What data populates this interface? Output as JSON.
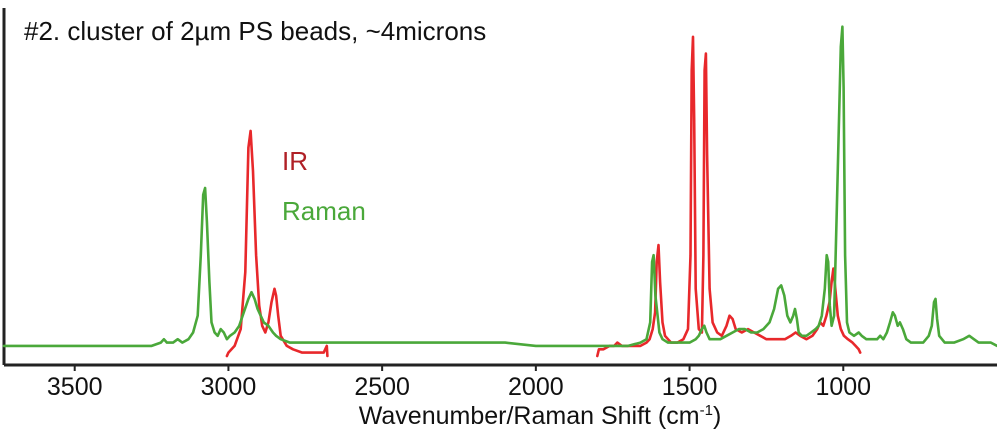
{
  "chart_data": {
    "type": "line",
    "title": "#2. cluster of 2µm PS beads, ~4microns",
    "xlabel": "Wavenumber/Raman Shift (cm",
    "xlabel_sup": "-1",
    "xlabel_end": ")",
    "xlim": [
      3730,
      500
    ],
    "x_reversed": true,
    "ylim": [
      0,
      1
    ],
    "grid": false,
    "legend_position": "upper-left-inside",
    "x_ticks": [
      3500,
      3000,
      2500,
      2000,
      1500,
      1000
    ],
    "x_tick_labels": [
      "3500",
      "3000",
      "2500",
      "2000",
      "1500",
      "1000"
    ],
    "series": [
      {
        "name": "IR",
        "color": "#e8282b",
        "segments": [
          [
            [
              3005,
              0.0
            ],
            [
              3000,
              0.01
            ],
            [
              2980,
              0.03
            ],
            [
              2960,
              0.08
            ],
            [
              2945,
              0.25
            ],
            [
              2935,
              0.62
            ],
            [
              2928,
              0.67
            ],
            [
              2920,
              0.55
            ],
            [
              2910,
              0.3
            ],
            [
              2900,
              0.15
            ],
            [
              2890,
              0.09
            ],
            [
              2880,
              0.07
            ],
            [
              2870,
              0.1
            ],
            [
              2860,
              0.16
            ],
            [
              2850,
              0.2
            ],
            [
              2845,
              0.18
            ],
            [
              2838,
              0.12
            ],
            [
              2830,
              0.06
            ],
            [
              2810,
              0.03
            ],
            [
              2790,
              0.02
            ],
            [
              2760,
              0.01
            ],
            [
              2720,
              0.01
            ],
            [
              2690,
              0.01
            ],
            [
              2680,
              0.03
            ],
            [
              2678,
              0.0
            ]
          ],
          [
            [
              1800,
              0.0
            ],
            [
              1795,
              0.02
            ],
            [
              1780,
              0.02
            ],
            [
              1760,
              0.03
            ],
            [
              1745,
              0.03
            ],
            [
              1735,
              0.04
            ],
            [
              1720,
              0.03
            ],
            [
              1700,
              0.03
            ],
            [
              1680,
              0.03
            ],
            [
              1660,
              0.03
            ],
            [
              1640,
              0.04
            ],
            [
              1630,
              0.05
            ],
            [
              1620,
              0.08
            ],
            [
              1612,
              0.13
            ],
            [
              1607,
              0.28
            ],
            [
              1601,
              0.33
            ],
            [
              1596,
              0.22
            ],
            [
              1588,
              0.1
            ],
            [
              1580,
              0.06
            ],
            [
              1570,
              0.05
            ],
            [
              1560,
              0.04
            ],
            [
              1540,
              0.04
            ],
            [
              1520,
              0.05
            ],
            [
              1505,
              0.08
            ],
            [
              1497,
              0.3
            ],
            [
              1493,
              0.85
            ],
            [
              1489,
              0.95
            ],
            [
              1485,
              0.7
            ],
            [
              1480,
              0.2
            ],
            [
              1470,
              0.08
            ],
            [
              1460,
              0.07
            ],
            [
              1455,
              0.3
            ],
            [
              1451,
              0.85
            ],
            [
              1447,
              0.9
            ],
            [
              1443,
              0.6
            ],
            [
              1435,
              0.2
            ],
            [
              1425,
              0.1
            ],
            [
              1410,
              0.07
            ],
            [
              1395,
              0.06
            ],
            [
              1380,
              0.09
            ],
            [
              1370,
              0.12
            ],
            [
              1360,
              0.11
            ],
            [
              1350,
              0.08
            ],
            [
              1330,
              0.07
            ],
            [
              1310,
              0.08
            ],
            [
              1290,
              0.07
            ],
            [
              1270,
              0.06
            ],
            [
              1250,
              0.05
            ],
            [
              1230,
              0.05
            ],
            [
              1210,
              0.05
            ],
            [
              1190,
              0.05
            ],
            [
              1170,
              0.06
            ],
            [
              1155,
              0.07
            ],
            [
              1140,
              0.06
            ],
            [
              1120,
              0.05
            ],
            [
              1100,
              0.06
            ],
            [
              1085,
              0.08
            ],
            [
              1075,
              0.1
            ],
            [
              1065,
              0.09
            ],
            [
              1055,
              0.12
            ],
            [
              1045,
              0.16
            ],
            [
              1038,
              0.22
            ],
            [
              1032,
              0.26
            ],
            [
              1026,
              0.2
            ],
            [
              1018,
              0.12
            ],
            [
              1008,
              0.08
            ],
            [
              998,
              0.06
            ],
            [
              985,
              0.05
            ],
            [
              970,
              0.04
            ],
            [
              960,
              0.03
            ],
            [
              950,
              0.02
            ],
            [
              945,
              0.01
            ]
          ]
        ]
      },
      {
        "name": "Raman",
        "color": "#4aa83a",
        "segments": [
          [
            [
              3730,
              0.03
            ],
            [
              3600,
              0.03
            ],
            [
              3500,
              0.03
            ],
            [
              3400,
              0.03
            ],
            [
              3300,
              0.03
            ],
            [
              3250,
              0.03
            ],
            [
              3220,
              0.04
            ],
            [
              3210,
              0.05
            ],
            [
              3200,
              0.04
            ],
            [
              3180,
              0.04
            ],
            [
              3165,
              0.05
            ],
            [
              3150,
              0.04
            ],
            [
              3130,
              0.05
            ],
            [
              3115,
              0.07
            ],
            [
              3100,
              0.12
            ],
            [
              3090,
              0.3
            ],
            [
              3082,
              0.48
            ],
            [
              3076,
              0.5
            ],
            [
              3070,
              0.4
            ],
            [
              3062,
              0.22
            ],
            [
              3055,
              0.1
            ],
            [
              3045,
              0.07
            ],
            [
              3035,
              0.06
            ],
            [
              3025,
              0.08
            ],
            [
              3015,
              0.07
            ],
            [
              3005,
              0.05
            ],
            [
              2995,
              0.06
            ],
            [
              2980,
              0.07
            ],
            [
              2965,
              0.09
            ],
            [
              2950,
              0.13
            ],
            [
              2935,
              0.17
            ],
            [
              2925,
              0.19
            ],
            [
              2915,
              0.17
            ],
            [
              2905,
              0.14
            ],
            [
              2895,
              0.12
            ],
            [
              2885,
              0.1
            ],
            [
              2870,
              0.09
            ],
            [
              2855,
              0.07
            ],
            [
              2845,
              0.06
            ],
            [
              2830,
              0.05
            ],
            [
              2800,
              0.04
            ],
            [
              2750,
              0.04
            ],
            [
              2700,
              0.04
            ],
            [
              2650,
              0.04
            ],
            [
              2600,
              0.04
            ],
            [
              2500,
              0.04
            ],
            [
              2400,
              0.04
            ],
            [
              2300,
              0.04
            ],
            [
              2200,
              0.04
            ],
            [
              2100,
              0.04
            ],
            [
              2000,
              0.03
            ],
            [
              1900,
              0.03
            ],
            [
              1800,
              0.03
            ],
            [
              1700,
              0.03
            ],
            [
              1660,
              0.04
            ],
            [
              1640,
              0.05
            ],
            [
              1628,
              0.1
            ],
            [
              1622,
              0.28
            ],
            [
              1617,
              0.3
            ],
            [
              1611,
              0.18
            ],
            [
              1604,
              0.12
            ],
            [
              1598,
              0.07
            ],
            [
              1588,
              0.05
            ],
            [
              1570,
              0.04
            ],
            [
              1550,
              0.04
            ],
            [
              1520,
              0.04
            ],
            [
              1500,
              0.04
            ],
            [
              1480,
              0.05
            ],
            [
              1470,
              0.06
            ],
            [
              1460,
              0.08
            ],
            [
              1452,
              0.09
            ],
            [
              1445,
              0.07
            ],
            [
              1435,
              0.05
            ],
            [
              1420,
              0.05
            ],
            [
              1400,
              0.05
            ],
            [
              1380,
              0.06
            ],
            [
              1360,
              0.07
            ],
            [
              1340,
              0.08
            ],
            [
              1320,
              0.08
            ],
            [
              1300,
              0.07
            ],
            [
              1280,
              0.07
            ],
            [
              1260,
              0.08
            ],
            [
              1240,
              0.1
            ],
            [
              1225,
              0.14
            ],
            [
              1212,
              0.2
            ],
            [
              1202,
              0.21
            ],
            [
              1192,
              0.18
            ],
            [
              1182,
              0.12
            ],
            [
              1172,
              0.1
            ],
            [
              1163,
              0.12
            ],
            [
              1157,
              0.14
            ],
            [
              1151,
              0.11
            ],
            [
              1145,
              0.07
            ],
            [
              1135,
              0.06
            ],
            [
              1120,
              0.06
            ],
            [
              1105,
              0.07
            ],
            [
              1090,
              0.08
            ],
            [
              1080,
              0.09
            ],
            [
              1070,
              0.12
            ],
            [
              1060,
              0.2
            ],
            [
              1054,
              0.3
            ],
            [
              1049,
              0.28
            ],
            [
              1044,
              0.15
            ],
            [
              1038,
              0.09
            ],
            [
              1030,
              0.12
            ],
            [
              1022,
              0.4
            ],
            [
              1008,
              0.92
            ],
            [
              1003,
              0.98
            ],
            [
              999,
              0.8
            ],
            [
              994,
              0.3
            ],
            [
              988,
              0.1
            ],
            [
              980,
              0.07
            ],
            [
              965,
              0.06
            ],
            [
              950,
              0.07
            ],
            [
              940,
              0.06
            ],
            [
              925,
              0.05
            ],
            [
              905,
              0.05
            ],
            [
              890,
              0.05
            ],
            [
              880,
              0.06
            ],
            [
              870,
              0.05
            ],
            [
              858,
              0.07
            ],
            [
              848,
              0.1
            ],
            [
              839,
              0.13
            ],
            [
              832,
              0.12
            ],
            [
              823,
              0.09
            ],
            [
              816,
              0.1
            ],
            [
              806,
              0.08
            ],
            [
              795,
              0.05
            ],
            [
              780,
              0.04
            ],
            [
              760,
              0.04
            ],
            [
              740,
              0.04
            ],
            [
              722,
              0.06
            ],
            [
              712,
              0.09
            ],
            [
              705,
              0.16
            ],
            [
              700,
              0.17
            ],
            [
              695,
              0.11
            ],
            [
              688,
              0.06
            ],
            [
              670,
              0.04
            ],
            [
              640,
              0.04
            ],
            [
              610,
              0.05
            ],
            [
              590,
              0.06
            ],
            [
              575,
              0.05
            ],
            [
              560,
              0.04
            ],
            [
              540,
              0.04
            ],
            [
              520,
              0.04
            ],
            [
              500,
              0.03
            ]
          ]
        ]
      }
    ]
  }
}
